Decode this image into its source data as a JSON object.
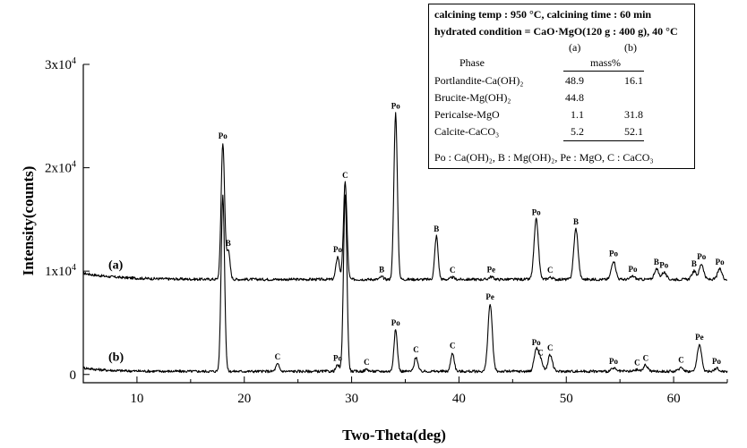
{
  "chart_data": {
    "type": "line",
    "xlabel": "Two-Theta(deg)",
    "ylabel": "Intensity(counts)",
    "xlim": [
      5,
      65
    ],
    "ylim": [
      -800,
      30000
    ],
    "x_ticks": [
      10,
      20,
      30,
      40,
      50,
      60
    ],
    "y_ticks": [
      {
        "value": 0,
        "mantissa": "0",
        "exponent": ""
      },
      {
        "value": 10000,
        "mantissa": "1x10",
        "exponent": "4"
      },
      {
        "value": 20000,
        "mantissa": "2x10",
        "exponent": "4"
      },
      {
        "value": 30000,
        "mantissa": "3x10",
        "exponent": "4"
      }
    ],
    "series": [
      {
        "name": "(a)",
        "baseline": 9200,
        "peaks": [
          {
            "x": 18.0,
            "height": 13200,
            "label": "Po"
          },
          {
            "x": 18.5,
            "height": 2800,
            "label": "B"
          },
          {
            "x": 28.7,
            "height": 2200,
            "label": "Po"
          },
          {
            "x": 29.4,
            "height": 9400,
            "label": "C"
          },
          {
            "x": 32.8,
            "height": 250,
            "label": "B"
          },
          {
            "x": 34.1,
            "height": 16100,
            "label": "Po"
          },
          {
            "x": 37.9,
            "height": 4200,
            "label": "B"
          },
          {
            "x": 39.4,
            "height": 200,
            "label": "C"
          },
          {
            "x": 43.0,
            "height": 250,
            "label": "Pe"
          },
          {
            "x": 47.2,
            "height": 5800,
            "label": "Po"
          },
          {
            "x": 48.5,
            "height": 200,
            "label": "C"
          },
          {
            "x": 50.9,
            "height": 4900,
            "label": "B"
          },
          {
            "x": 54.4,
            "height": 1800,
            "label": "Po"
          },
          {
            "x": 56.2,
            "height": 300,
            "label": "Po"
          },
          {
            "x": 58.4,
            "height": 1000,
            "label": "B"
          },
          {
            "x": 59.1,
            "height": 700,
            "label": "Po"
          },
          {
            "x": 61.9,
            "height": 800,
            "label": "B"
          },
          {
            "x": 62.6,
            "height": 1500,
            "label": "Po"
          },
          {
            "x": 64.3,
            "height": 1000,
            "label": "Po"
          }
        ]
      },
      {
        "name": "(b)",
        "baseline": 300,
        "peaks": [
          {
            "x": 18.0,
            "height": 17000,
            "label": ""
          },
          {
            "x": 23.1,
            "height": 700,
            "label": "C"
          },
          {
            "x": 28.7,
            "height": 600,
            "label": "Po"
          },
          {
            "x": 29.4,
            "height": 17000,
            "label": ""
          },
          {
            "x": 31.4,
            "height": 200,
            "label": "C"
          },
          {
            "x": 34.1,
            "height": 4000,
            "label": "Po"
          },
          {
            "x": 36.0,
            "height": 1400,
            "label": "C"
          },
          {
            "x": 39.4,
            "height": 1800,
            "label": "C"
          },
          {
            "x": 42.9,
            "height": 6500,
            "label": "Pe"
          },
          {
            "x": 47.2,
            "height": 2100,
            "label": "Po"
          },
          {
            "x": 47.6,
            "height": 1100,
            "label": "C"
          },
          {
            "x": 48.5,
            "height": 1600,
            "label": "C"
          },
          {
            "x": 54.4,
            "height": 300,
            "label": "Po"
          },
          {
            "x": 56.6,
            "height": 150,
            "label": "C"
          },
          {
            "x": 57.4,
            "height": 600,
            "label": "C"
          },
          {
            "x": 60.7,
            "height": 400,
            "label": "C"
          },
          {
            "x": 62.4,
            "height": 2600,
            "label": "Pe"
          },
          {
            "x": 64.0,
            "height": 300,
            "label": "Po"
          }
        ]
      }
    ],
    "inset_table": {
      "line1": "calcining temp : 950 °C, calcining time : 60 min",
      "line2": "hydrated condition = CaO·MgO(120 g : 400 g), 40 °C",
      "col_a": "(a)",
      "col_b": "(b)",
      "header_phase": "Phase",
      "header_unit": "mass%",
      "rows": [
        {
          "phase": "Portlandite-Ca(OH)₂",
          "a": "48.9",
          "b": "16.1"
        },
        {
          "phase": "Brucite-Mg(OH)₂",
          "a": "44.8",
          "b": ""
        },
        {
          "phase": "Pericalse-MgO",
          "a": "1.1",
          "b": "31.8"
        },
        {
          "phase": "Calcite-CaCO₃",
          "a": "5.2",
          "b": "52.1"
        }
      ],
      "footnote": "Po : Ca(OH)₂, B : Mg(OH)₂, Pe : MgO, C : CaCO₃"
    }
  }
}
